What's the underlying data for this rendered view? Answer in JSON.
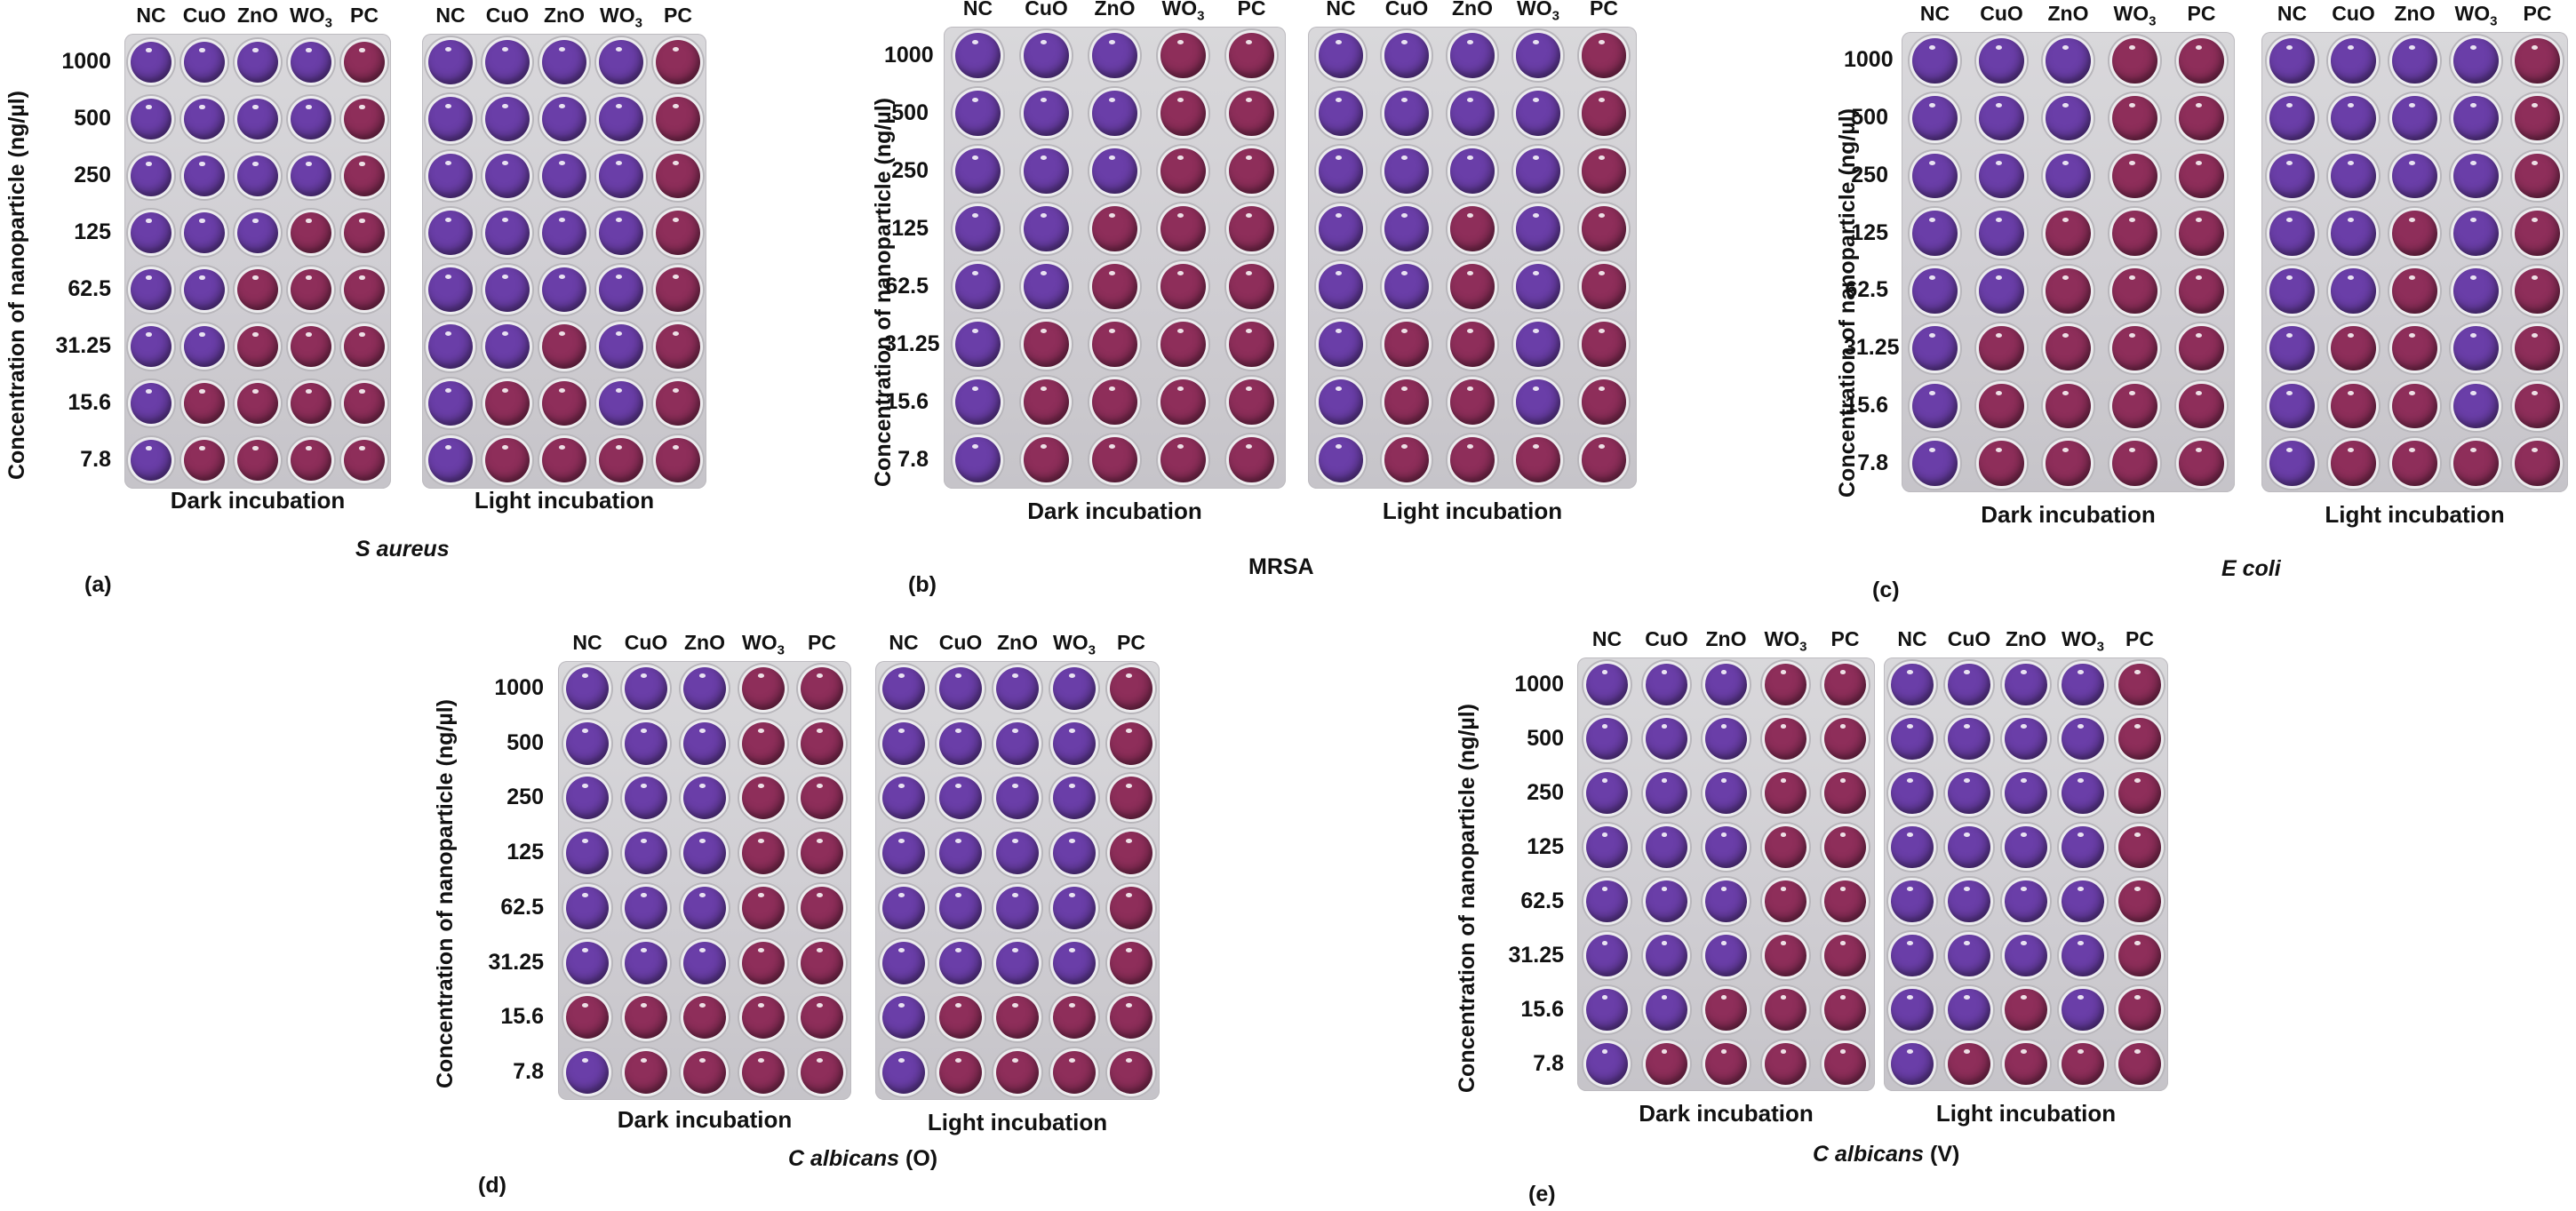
{
  "figure": {
    "y_axis_label": "Concentration of nanoparticle (ng/µl)",
    "concentrations": [
      "1000",
      "500",
      "250",
      "125",
      "62.5",
      "31.25",
      "15.6",
      "7.8"
    ],
    "columns": [
      {
        "label": "NC",
        "sub": ""
      },
      {
        "label": "CuO",
        "sub": ""
      },
      {
        "label": "ZnO",
        "sub": ""
      },
      {
        "label": "WO",
        "sub": "3"
      },
      {
        "label": "PC",
        "sub": ""
      }
    ],
    "dark_label": "Dark incubation",
    "light_label": "Light incubation",
    "colors": {
      "purple": "#6a3ea8",
      "pink": "#8e2e5a",
      "mid": "#7a3880"
    }
  },
  "panels": [
    {
      "id": "a",
      "tag": "(a)",
      "organism": "S aureus",
      "suffix": "",
      "dark": [
        "PPPPK",
        "PPPPK",
        "PPPPK",
        "PPPKK",
        "PPKKK",
        "PPKKK",
        "PKKKK",
        "PKKKK"
      ],
      "light": [
        "PPPPK",
        "PPPPK",
        "PPPPK",
        "PPPPK",
        "PPPPK",
        "PPKPK",
        "PKKPK",
        "PKKKK"
      ]
    },
    {
      "id": "b",
      "tag": "(b)",
      "organism": "MRSA",
      "suffix": "",
      "dark": [
        "PPPKK",
        "PPPKK",
        "PPPKK",
        "PPKKK",
        "PPKKK",
        "PKKKK",
        "PKKKK",
        "PKKKK"
      ],
      "light": [
        "PPPPK",
        "PPPPK",
        "PPPPK",
        "PPKPK",
        "PPKPK",
        "PKKPK",
        "PKKPK",
        "PKKKK"
      ]
    },
    {
      "id": "c",
      "tag": "(c)",
      "organism": "E coli",
      "suffix": "",
      "dark": [
        "PPPKK",
        "PPPKK",
        "PPPKK",
        "PPKKK",
        "PPKKK",
        "PKKKK",
        "PKKKK",
        "PKKKK"
      ],
      "light": [
        "PPPPK",
        "PPPPK",
        "PPPPK",
        "PPKPK",
        "PPKPK",
        "PKKPK",
        "PKKPK",
        "PKKKK"
      ]
    },
    {
      "id": "d",
      "tag": "(d)",
      "organism": "C albicans",
      "suffix": " (O)",
      "dark": [
        "PPPKK",
        "PPPKK",
        "PPPKK",
        "PPPKK",
        "PPPKK",
        "PPPKK",
        "KKKKK",
        "PKKKK"
      ],
      "light": [
        "PPPPK",
        "PPPPK",
        "PPPPK",
        "PPPPK",
        "PPPPK",
        "PPPPK",
        "PKKKK",
        "PKKKK"
      ]
    },
    {
      "id": "e",
      "tag": "(e)",
      "organism": "C albicans",
      "suffix": " (V)",
      "dark": [
        "PPPKK",
        "PPPKK",
        "PPPKK",
        "PPPKK",
        "PPPKK",
        "PPPKK",
        "PPKKK",
        "PKKKK"
      ],
      "light": [
        "PPPPK",
        "PPPPK",
        "PPPPK",
        "PPPPK",
        "PPPPK",
        "PPPPK",
        "PPKPK",
        "PKKKK"
      ]
    }
  ]
}
